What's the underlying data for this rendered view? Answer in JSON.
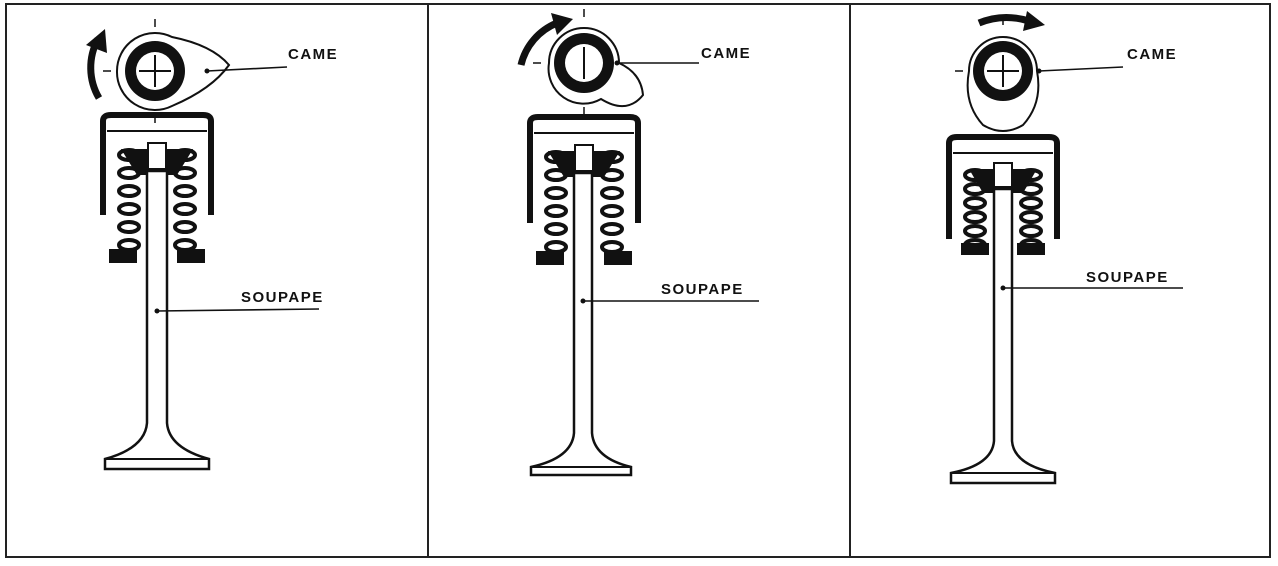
{
  "labels": {
    "cam": "CAME",
    "valve": "SOUPAPE"
  },
  "panels": [
    {
      "id": "panel-1",
      "cam_lobe": "right",
      "valve_lift": 0
    },
    {
      "id": "panel-2",
      "cam_lobe": "lower-right",
      "valve_lift": 0
    },
    {
      "id": "panel-3",
      "cam_lobe": "down",
      "valve_lift": 1
    }
  ],
  "colors": {
    "ink": "#111111",
    "background": "#ffffff"
  }
}
